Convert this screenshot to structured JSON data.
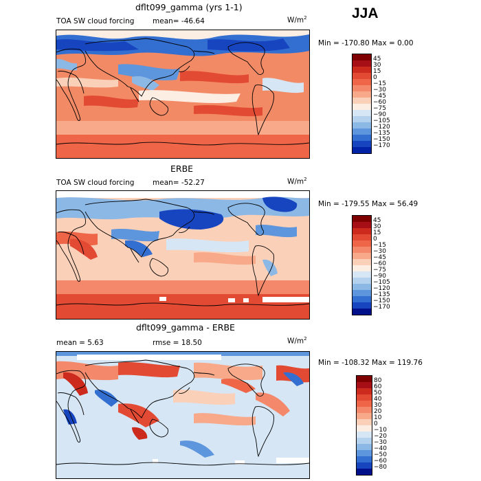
{
  "season": "JJA",
  "units_label": "W/m",
  "units_sup": "2",
  "panels": [
    {
      "title": "dflt099_gamma (yrs 1-1)",
      "left_label": "TOA SW cloud forcing",
      "mid_label": "mean= -46.64",
      "minmax": "Min = -170.80 Max =    0.00",
      "ticks": [
        "45",
        "30",
        "15",
        "0",
        "−15",
        "−30",
        "−45",
        "−60",
        "−75",
        "−90",
        "−105",
        "−120",
        "−135",
        "−150",
        "−170"
      ],
      "colors": [
        "#7f0000",
        "#a50f15",
        "#cb2a1c",
        "#e34a33",
        "#ef6548",
        "#f4886a",
        "#f7a98a",
        "#fbd0b9",
        "#fdeee4",
        "#d6e6f4",
        "#b4d2ee",
        "#8cb8e6",
        "#5d96dc",
        "#336fd1",
        "#1745c0",
        "#0022a6"
      ]
    },
    {
      "title": "ERBE",
      "left_label": "TOA SW cloud forcing",
      "mid_label": "mean= -52.27",
      "minmax": "Min = -179.55 Max =  56.49",
      "ticks": [
        "45",
        "30",
        "15",
        "0",
        "−15",
        "−30",
        "−45",
        "−60",
        "−75",
        "−90",
        "−105",
        "−120",
        "−135",
        "−150",
        "−170"
      ],
      "colors": [
        "#7f0000",
        "#a50f15",
        "#cb2a1c",
        "#e34a33",
        "#ef6548",
        "#f4886a",
        "#f7a98a",
        "#fbd0b9",
        "#fdeee4",
        "#d6e6f4",
        "#b4d2ee",
        "#8cb8e6",
        "#5d96dc",
        "#336fd1",
        "#1745c0",
        "#00108a"
      ]
    },
    {
      "title": "dflt099_gamma - ERBE",
      "left_label": "mean =    5.63",
      "mid_label": "rmse =   18.50",
      "minmax": "Min = -108.32 Max = 119.76",
      "ticks": [
        "80",
        "60",
        "50",
        "40",
        "30",
        "20",
        "10",
        "0",
        "−10",
        "−20",
        "−30",
        "−40",
        "−50",
        "−60",
        "−80"
      ],
      "colors": [
        "#7f0000",
        "#a50f15",
        "#cb2a1c",
        "#e34a33",
        "#ef6548",
        "#f4886a",
        "#f7a98a",
        "#fbd0b9",
        "#fdeee4",
        "#d6e6f4",
        "#b4d2ee",
        "#8cb8e6",
        "#5d96dc",
        "#336fd1",
        "#1745c0",
        "#00108a"
      ]
    }
  ]
}
